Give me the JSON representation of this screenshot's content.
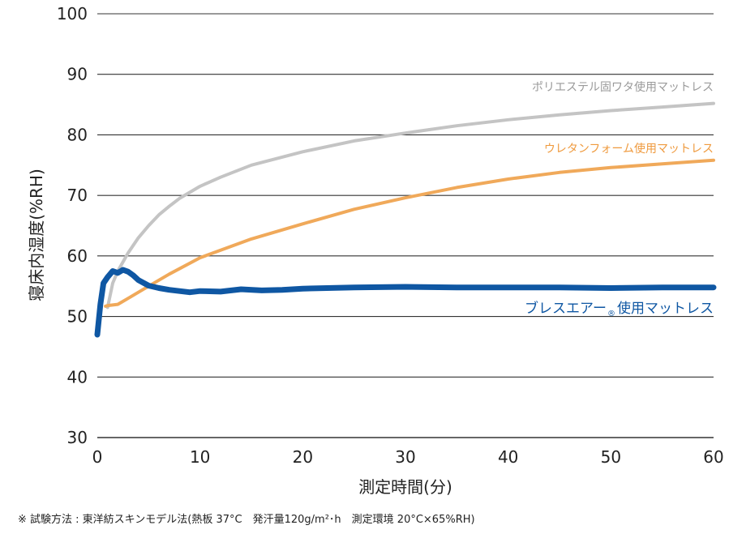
{
  "chart_data": {
    "type": "line",
    "xlabel": "測定時間(分)",
    "ylabel": "寝床内湿度(%RH)",
    "xlim": [
      0,
      60
    ],
    "ylim": [
      30,
      100
    ],
    "x_ticks": [
      "0",
      "10",
      "20",
      "30",
      "40",
      "50",
      "60"
    ],
    "y_ticks": [
      "30",
      "40",
      "50",
      "60",
      "70",
      "80",
      "90",
      "100"
    ],
    "grid": "horizontal",
    "series": [
      {
        "name": "ポリエステル固ワタ使用マットレス",
        "color": "#c4c4c4",
        "x": [
          1,
          1.5,
          2,
          3,
          4,
          5,
          6,
          7,
          8,
          10,
          12,
          15,
          20,
          25,
          30,
          35,
          40,
          45,
          50,
          55,
          60
        ],
        "y": [
          51.5,
          55.5,
          57.5,
          60.5,
          63.0,
          65.0,
          66.8,
          68.2,
          69.5,
          71.5,
          73.0,
          75.0,
          77.2,
          79.0,
          80.3,
          81.5,
          82.5,
          83.3,
          84.0,
          84.6,
          85.2
        ]
      },
      {
        "name": "ウレタンフォーム使用マットレス",
        "color": "#f0a95a",
        "x": [
          0.8,
          1,
          2,
          3,
          5,
          7,
          10,
          15,
          20,
          25,
          30,
          35,
          40,
          45,
          50,
          55,
          60
        ],
        "y": [
          51.7,
          51.8,
          52.0,
          53.0,
          55.0,
          57.0,
          59.7,
          62.8,
          65.3,
          67.7,
          69.6,
          71.3,
          72.7,
          73.8,
          74.6,
          75.2,
          75.8
        ]
      },
      {
        "name_main": "ブレスエアー",
        "name_mark": "®",
        "name_suffix": "使用マットレス",
        "color": "#0f57a3",
        "x": [
          0,
          0.3,
          0.6,
          1,
          1.5,
          2,
          2.5,
          3,
          3.5,
          4,
          5,
          6,
          7,
          8,
          9,
          10,
          12,
          14,
          16,
          18,
          20,
          25,
          30,
          35,
          40,
          45,
          50,
          55,
          60
        ],
        "y": [
          47,
          52,
          55.5,
          56.5,
          57.5,
          57.2,
          57.7,
          57.4,
          56.8,
          56.0,
          55.1,
          54.7,
          54.4,
          54.2,
          54.0,
          54.2,
          54.1,
          54.5,
          54.3,
          54.4,
          54.6,
          54.8,
          54.9,
          54.8,
          54.8,
          54.8,
          54.7,
          54.8,
          54.8
        ]
      }
    ]
  },
  "footnote": "※ 試験方法 : 東洋紡スキンモデル法(熱板 37°C　発汗量120g/m²･h　測定環境 20°C×65%RH)"
}
